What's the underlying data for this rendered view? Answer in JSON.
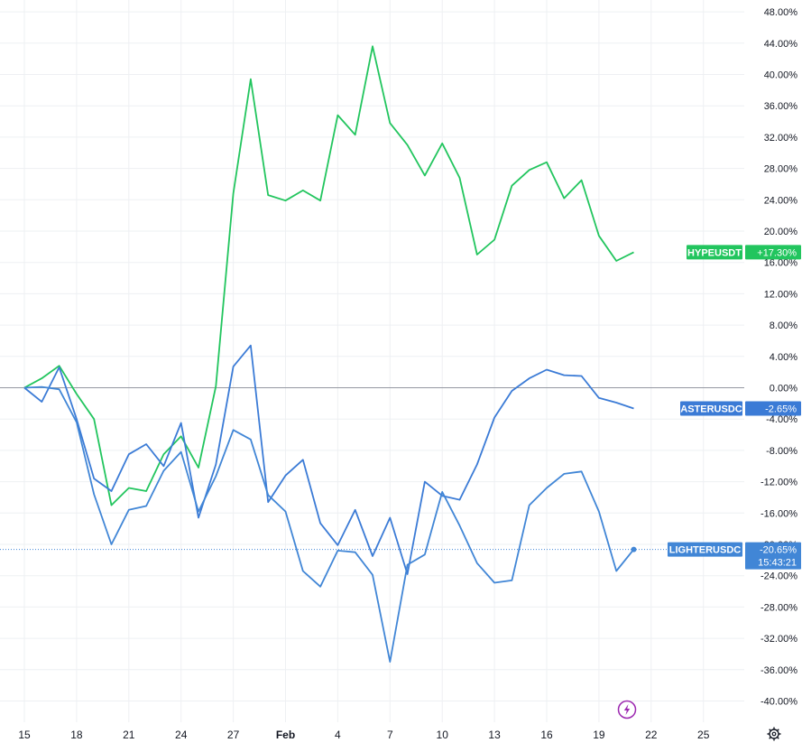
{
  "chart_data": {
    "type": "line",
    "x_ticks": [
      "15",
      "18",
      "21",
      "24",
      "27",
      "Feb",
      "4",
      "7",
      "10",
      "13",
      "16",
      "19",
      "22",
      "25"
    ],
    "y_ticks": [
      "48.00%",
      "44.00%",
      "40.00%",
      "36.00%",
      "32.00%",
      "28.00%",
      "24.00%",
      "20.00%",
      "16.00%",
      "12.00%",
      "8.00%",
      "4.00%",
      "0.00%",
      "-4.00%",
      "-8.00%",
      "-12.00%",
      "-16.00%",
      "-20.00%",
      "-24.00%",
      "-28.00%",
      "-32.00%",
      "-36.00%",
      "-40.00%"
    ],
    "ylim": [
      -42,
      50
    ],
    "x_day_range": [
      15,
      19
    ],
    "series": [
      {
        "name": "HYPEUSDT",
        "label_value": "+17.30%",
        "color": "#22c55e",
        "x": [
          15,
          16,
          17,
          18,
          19,
          20,
          21,
          22,
          23,
          24,
          25,
          26,
          27,
          28,
          29,
          30,
          31,
          32,
          33,
          34,
          35,
          36,
          37,
          38,
          39,
          40,
          41,
          42,
          43,
          44,
          45,
          46,
          47,
          48,
          49,
          50
        ],
        "values": [
          0.0,
          1.2,
          2.8,
          -0.8,
          -4.0,
          -15.0,
          -12.8,
          -13.2,
          -8.5,
          -6.2,
          -10.2,
          0.2,
          24.8,
          39.4,
          24.6,
          23.9,
          25.2,
          23.9,
          34.8,
          32.3,
          43.6,
          33.8,
          31.0,
          27.1,
          31.2,
          26.8,
          17.0,
          18.9,
          25.8,
          27.8,
          28.8,
          24.2,
          26.5,
          19.4,
          16.2,
          17.3
        ]
      },
      {
        "name": "ASTERUSDC",
        "label_value": "-2.65%",
        "color": "#3b7bd6",
        "x": [
          15,
          16,
          17,
          18,
          19,
          20,
          21,
          22,
          23,
          24,
          25,
          26,
          27,
          28,
          29,
          30,
          31,
          32,
          33,
          34,
          35,
          36,
          37,
          38,
          39,
          40,
          41,
          42,
          43,
          44,
          45,
          46,
          47,
          48,
          49,
          50
        ],
        "values": [
          0.0,
          -1.8,
          2.6,
          -4.0,
          -11.6,
          -13.2,
          -8.5,
          -7.2,
          -10.0,
          -4.5,
          -16.6,
          -9.8,
          2.7,
          5.4,
          -14.6,
          -11.2,
          -9.2,
          -17.3,
          -20.1,
          -15.6,
          -21.5,
          -16.6,
          -23.8,
          -12.0,
          -13.8,
          -14.3,
          -9.8,
          -3.8,
          -0.4,
          1.2,
          2.3,
          1.6,
          1.5,
          -1.3,
          -1.9,
          -2.65
        ]
      },
      {
        "name": "LIGHTERUSDC",
        "label_value": "-20.65%",
        "countdown": "15:43:21",
        "color": "#4186d6",
        "x": [
          15,
          16,
          17,
          18,
          19,
          20,
          21,
          22,
          23,
          24,
          25,
          26,
          27,
          28,
          29,
          30,
          31,
          32,
          33,
          34,
          35,
          36,
          37,
          38,
          39,
          40,
          41,
          42,
          43,
          44,
          45,
          46,
          47,
          48,
          49,
          50
        ],
        "values": [
          0.0,
          0.1,
          -0.2,
          -4.4,
          -13.6,
          -20.0,
          -15.6,
          -15.1,
          -10.6,
          -8.2,
          -15.8,
          -11.3,
          -5.4,
          -6.6,
          -13.7,
          -15.8,
          -23.4,
          -25.4,
          -20.8,
          -21.0,
          -23.9,
          -35.0,
          -22.6,
          -21.3,
          -13.3,
          -17.6,
          -22.4,
          -24.9,
          -24.6,
          -15.0,
          -12.8,
          -11.0,
          -10.7,
          -15.8,
          -23.4,
          -20.65
        ]
      }
    ],
    "baseline": 0,
    "grid": true,
    "axis_position": "right"
  },
  "chart_icons": [
    "lightning-icon",
    "gear-icon"
  ],
  "colors": {
    "background": "#ffffff",
    "grid": "#eef0f3",
    "baseline": "#9598a1",
    "lightning": "#9c27b0"
  }
}
